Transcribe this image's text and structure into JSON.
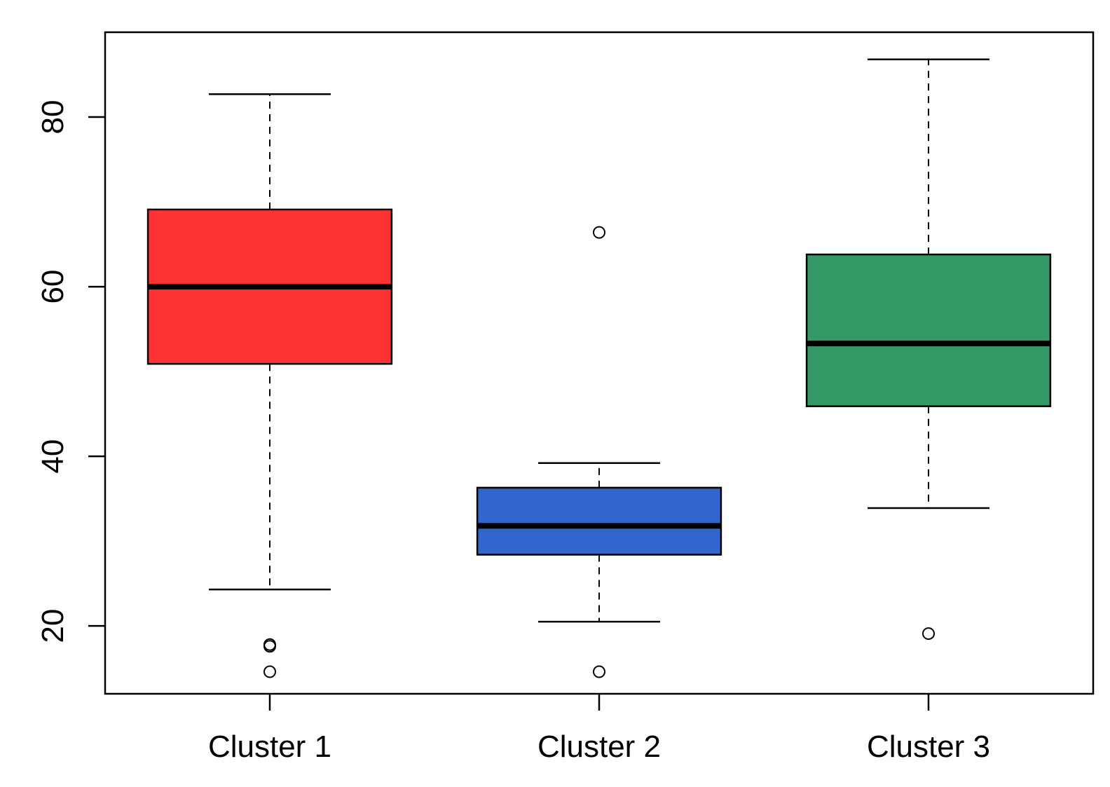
{
  "chart_data": {
    "type": "boxplot",
    "title": "",
    "xlabel": "",
    "ylabel": "",
    "ylim": [
      12.0,
      90.0
    ],
    "y_ticks": [
      20,
      40,
      60,
      80
    ],
    "grid": false,
    "categories": [
      "Cluster 1",
      "Cluster 2",
      "Cluster 3"
    ],
    "boxes": [
      {
        "category": "Cluster 1",
        "color": "#ff3333",
        "whisker_low": 24.3,
        "q1": 50.9,
        "median": 60.0,
        "q3": 69.1,
        "whisker_high": 82.7,
        "outliers": [
          17.6,
          17.8,
          14.6
        ]
      },
      {
        "category": "Cluster 2",
        "color": "#3366cc",
        "whisker_low": 20.5,
        "q1": 28.4,
        "median": 31.8,
        "q3": 36.3,
        "whisker_high": 39.2,
        "outliers": [
          66.4,
          14.6
        ]
      },
      {
        "category": "Cluster 3",
        "color": "#339966",
        "whisker_low": 33.9,
        "q1": 45.9,
        "median": 53.3,
        "q3": 63.8,
        "whisker_high": 86.8,
        "outliers": [
          19.1
        ]
      }
    ]
  }
}
